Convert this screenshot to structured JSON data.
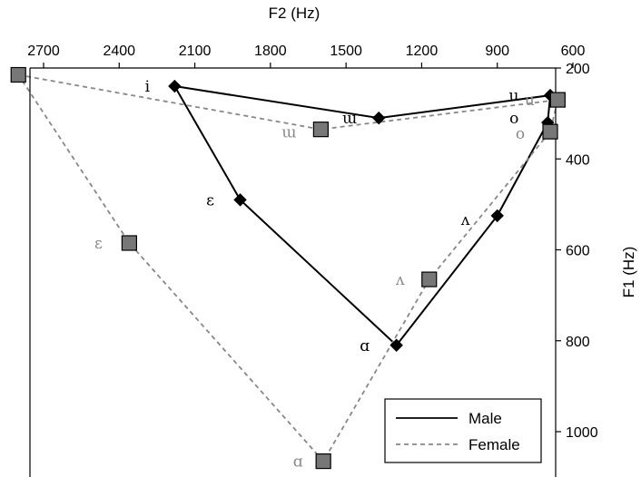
{
  "chart_data": {
    "type": "scatter",
    "title": "",
    "xlabel": "F2 (Hz)",
    "ylabel": "F1 (Hz)",
    "x_axis_position": "top",
    "y_axis_position": "right",
    "x_reversed": true,
    "y_reversed": true,
    "xlim": [
      2850,
      600
    ],
    "ylim": [
      200,
      1080
    ],
    "x_ticks": [
      2700,
      2400,
      2100,
      1800,
      1500,
      1200,
      900,
      600
    ],
    "y_ticks": [
      200,
      400,
      600,
      800,
      1000
    ],
    "grid": false,
    "legend_position": "bottom-right",
    "series": [
      {
        "name": "Male",
        "color": "#000000",
        "line_style": "solid",
        "marker": "diamond",
        "label_color": "#000000",
        "points": [
          {
            "vowel": "i",
            "x": 2180,
            "y": 240
          },
          {
            "vowel": "ɯ",
            "x": 1370,
            "y": 310
          },
          {
            "vowel": "u",
            "x": 690,
            "y": 260
          },
          {
            "vowel": "o",
            "x": 700,
            "y": 320
          },
          {
            "vowel": "ʌ",
            "x": 900,
            "y": 525
          },
          {
            "vowel": "ɑ",
            "x": 1300,
            "y": 810
          },
          {
            "vowel": "ɛ",
            "x": 1920,
            "y": 490
          }
        ]
      },
      {
        "name": "Female",
        "color": "#888888",
        "line_style": "dashed",
        "marker": "square",
        "label_color": "#888888",
        "points": [
          {
            "vowel": "i",
            "x": 2800,
            "y": 215
          },
          {
            "vowel": "ɯ",
            "x": 1600,
            "y": 335
          },
          {
            "vowel": "u",
            "x": 660,
            "y": 270
          },
          {
            "vowel": "o",
            "x": 690,
            "y": 340
          },
          {
            "vowel": "ʌ",
            "x": 1170,
            "y": 665
          },
          {
            "vowel": "ɑ",
            "x": 1590,
            "y": 1065
          },
          {
            "vowel": "ɛ",
            "x": 2360,
            "y": 585
          }
        ]
      }
    ]
  }
}
